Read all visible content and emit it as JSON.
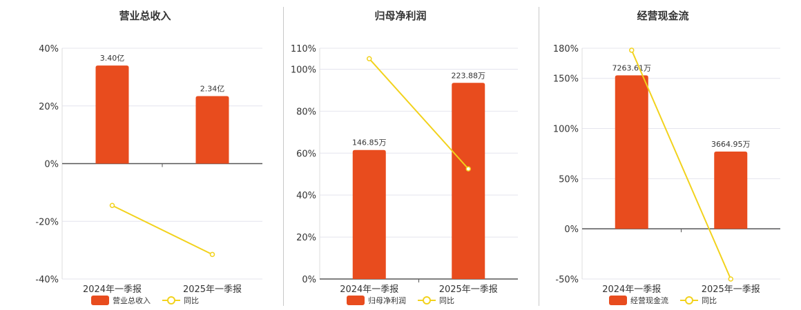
{
  "colors": {
    "bar": "#E84C1E",
    "line": "#F2D21C",
    "grid": "#E4E4EE",
    "axis": "#555555"
  },
  "chart_data": [
    {
      "type": "bar",
      "title": "营业总收入",
      "categories": [
        "2024年一季报",
        "2025年一季报"
      ],
      "series": [
        {
          "name": "营业总收入",
          "kind": "bar",
          "values": [
            34,
            23.4
          ],
          "labels": [
            "3.40亿",
            "2.34亿"
          ]
        },
        {
          "name": "同比",
          "kind": "line",
          "values": [
            -14.5,
            -31.5
          ]
        }
      ],
      "ylim": [
        -40,
        40
      ],
      "yticks": [
        -40,
        -20,
        0,
        20,
        40
      ],
      "ytick_labels": [
        "-40%",
        "-20%",
        "0%",
        "20%",
        "40%"
      ],
      "grid": true,
      "legend": "bottom"
    },
    {
      "type": "bar",
      "title": "归母净利润",
      "categories": [
        "2024年一季报",
        "2025年一季报"
      ],
      "series": [
        {
          "name": "归母净利润",
          "kind": "bar",
          "values": [
            61.5,
            93.5
          ],
          "labels": [
            "146.85万",
            "223.88万"
          ]
        },
        {
          "name": "同比",
          "kind": "line",
          "values": [
            105,
            52.5
          ]
        }
      ],
      "ylim": [
        0,
        110
      ],
      "yticks": [
        0,
        20,
        40,
        60,
        80,
        100,
        110
      ],
      "ytick_labels": [
        "0%",
        "20%",
        "40%",
        "60%",
        "80%",
        "100%",
        "110%"
      ],
      "grid": true,
      "legend": "bottom"
    },
    {
      "type": "bar",
      "title": "经营现金流",
      "categories": [
        "2024年一季报",
        "2025年一季报"
      ],
      "series": [
        {
          "name": "经营现金流",
          "kind": "bar",
          "values": [
            153,
            77
          ],
          "labels": [
            "7263.61万",
            "3664.95万"
          ]
        },
        {
          "name": "同比",
          "kind": "line",
          "values": [
            178,
            -50
          ]
        }
      ],
      "ylim": [
        -50,
        180
      ],
      "yticks": [
        -50,
        0,
        50,
        100,
        150,
        180
      ],
      "ytick_labels": [
        "-50%",
        "0%",
        "50%",
        "100%",
        "150%",
        "180%"
      ],
      "grid": true,
      "legend": "bottom"
    }
  ]
}
